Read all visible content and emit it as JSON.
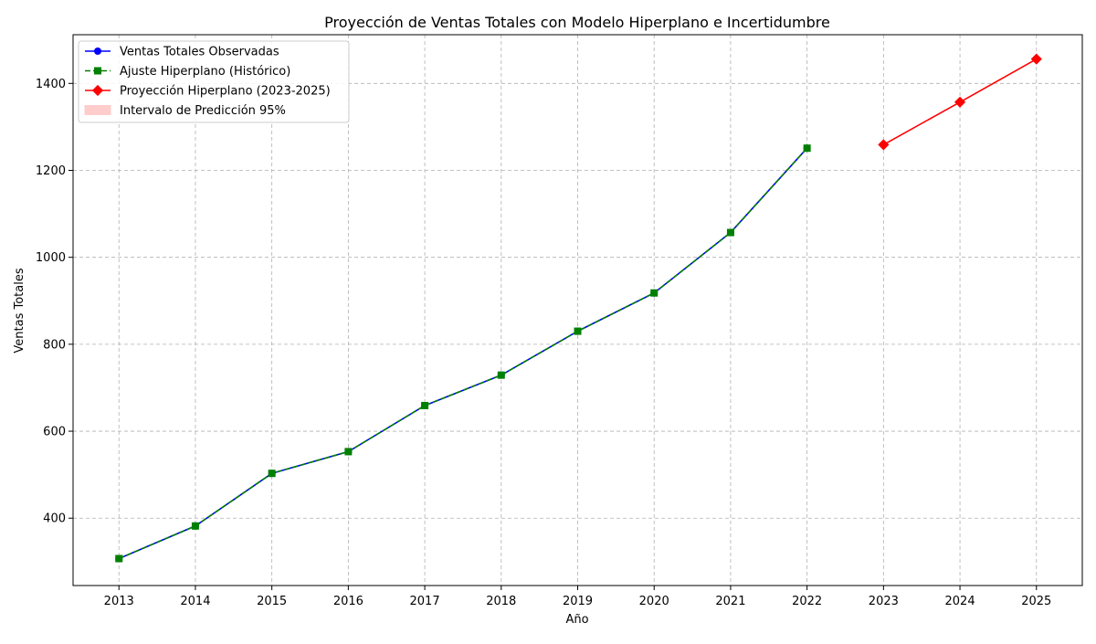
{
  "chart_data": {
    "type": "line",
    "title": "Proyección de Ventas Totales con Modelo Hiperplano e Incertidumbre",
    "xlabel": "Año",
    "ylabel": "Ventas Totales",
    "x": [
      2013,
      2014,
      2015,
      2016,
      2017,
      2018,
      2019,
      2020,
      2021,
      2022,
      2023,
      2024,
      2025
    ],
    "xlim": [
      2012.4,
      2025.6
    ],
    "ylim": [
      245,
      1512
    ],
    "yticks": [
      400,
      600,
      800,
      1000,
      1200,
      1400
    ],
    "grid": true,
    "legend_position": "upper-left",
    "series": [
      {
        "name": "Ventas Totales Observadas",
        "color": "#0000ff",
        "marker": "circle",
        "linestyle": "solid",
        "x": [
          2013,
          2014,
          2015,
          2016,
          2017,
          2018,
          2019,
          2020,
          2021,
          2022
        ],
        "values": [
          307,
          382,
          503,
          553,
          659,
          729,
          830,
          918,
          1057,
          1251
        ]
      },
      {
        "name": "Ajuste Hiperplano (Histórico)",
        "color": "#008000",
        "marker": "square",
        "linestyle": "dashed",
        "x": [
          2013,
          2014,
          2015,
          2016,
          2017,
          2018,
          2019,
          2020,
          2021,
          2022
        ],
        "values": [
          307,
          382,
          503,
          553,
          659,
          729,
          830,
          918,
          1057,
          1251
        ]
      },
      {
        "name": "Proyección Hiperplano (2023-2025)",
        "color": "#ff0000",
        "marker": "diamond",
        "linestyle": "solid",
        "x": [
          2023,
          2024,
          2025
        ],
        "values": [
          1259,
          1357,
          1456
        ]
      }
    ],
    "band": {
      "name": "Intervalo de Predicción 95%",
      "color": "#ff9999",
      "opacity": 0.5,
      "x": [
        2023,
        2024,
        2025
      ],
      "lower": [
        1259,
        1357,
        1456
      ],
      "upper": [
        1259,
        1357,
        1456
      ]
    }
  }
}
